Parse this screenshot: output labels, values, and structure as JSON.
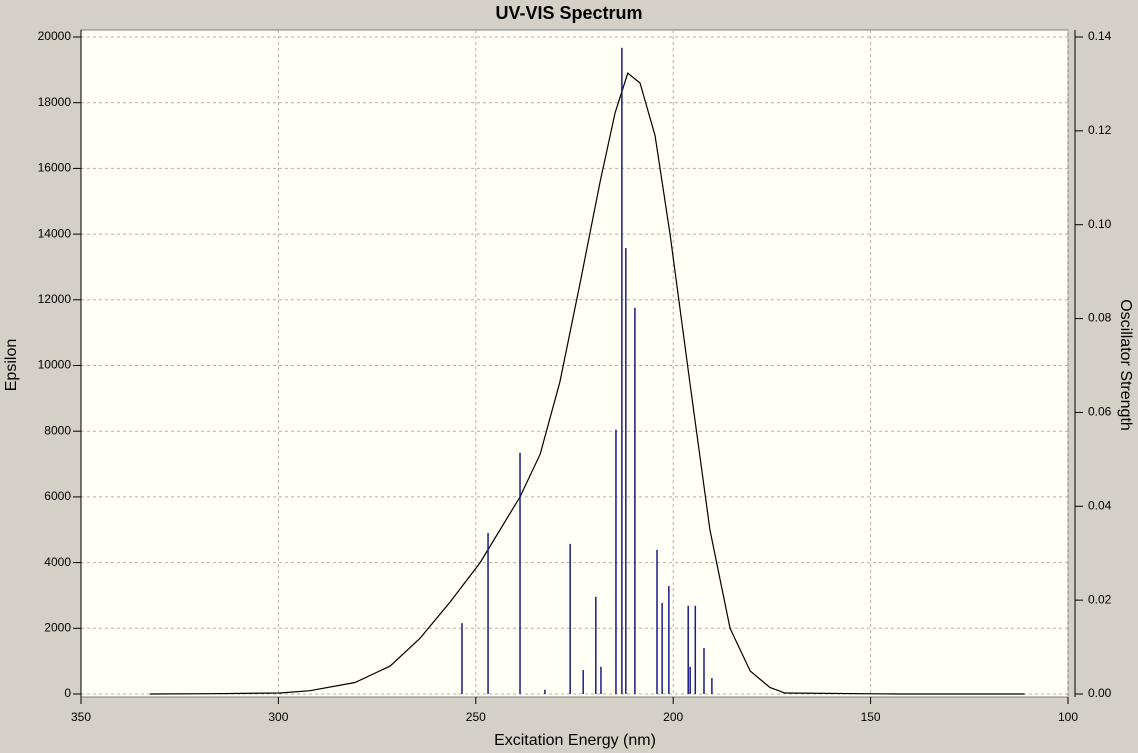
{
  "chart_data": {
    "type": "line",
    "title": "UV-VIS Spectrum",
    "xlabel": "Excitation Energy (nm)",
    "ylabel": "Epsilon",
    "y2label": "Oscillator Strength",
    "xlim": [
      350,
      100
    ],
    "xticks": [
      350,
      300,
      250,
      200,
      150,
      100
    ],
    "ylim": [
      0,
      20000
    ],
    "yticks": [
      0,
      2000,
      4000,
      6000,
      8000,
      10000,
      12000,
      14000,
      16000,
      18000,
      20000
    ],
    "y2lim": [
      0,
      0.14
    ],
    "y2ticks": [
      {
        "value": 0,
        "label": "0.00"
      },
      {
        "value": 0.02,
        "label": "0.02"
      },
      {
        "value": 0.04,
        "label": "0.04"
      },
      {
        "value": 0.06,
        "label": "0.06"
      },
      {
        "value": 0.08,
        "label": "0.08"
      },
      {
        "value": 0.1,
        "label": "0.10"
      },
      {
        "value": 0.12,
        "label": "0.12"
      },
      {
        "value": 0.14,
        "label": "0.14"
      }
    ],
    "grid": true,
    "series": [
      {
        "type": "line",
        "color": "#000000",
        "x": [
          332.5,
          316.6,
          299.6,
          292,
          280.6,
          271.7,
          264.1,
          256.5,
          248.9,
          238.8,
          233.7,
          228.7,
          223.6,
          218.5,
          214.7,
          211.5,
          208.4,
          204.6,
          200.8,
          195.8,
          190.7,
          185.6,
          180.5,
          175.5,
          171.7,
          142.6,
          111
        ],
        "values": [
          0,
          10,
          30,
          100,
          350,
          850,
          1700,
          2800,
          4000,
          6000,
          7300,
          9500,
          12500,
          15600,
          17700,
          18900,
          18600,
          17000,
          14000,
          9500,
          5000,
          2000,
          700,
          200,
          30,
          0,
          0
        ]
      },
      {
        "type": "stem",
        "color": "#1a1a8c",
        "axis": "y2",
        "x": [
          253.5,
          246.9,
          238.8,
          232.5,
          226.1,
          222.8,
          219.6,
          218.3,
          214.5,
          213.0,
          212.0,
          209.7,
          204.1,
          202.8,
          201.1,
          196.2,
          195.7,
          194.4,
          192.2,
          190.2
        ],
        "values": [
          0.0151,
          0.0343,
          0.0514,
          0.0009,
          0.032,
          0.0051,
          0.0207,
          0.0058,
          0.0563,
          0.1377,
          0.095,
          0.0823,
          0.0307,
          0.0194,
          0.023,
          0.0188,
          0.0058,
          0.0188,
          0.0098,
          0.0034
        ]
      }
    ]
  }
}
